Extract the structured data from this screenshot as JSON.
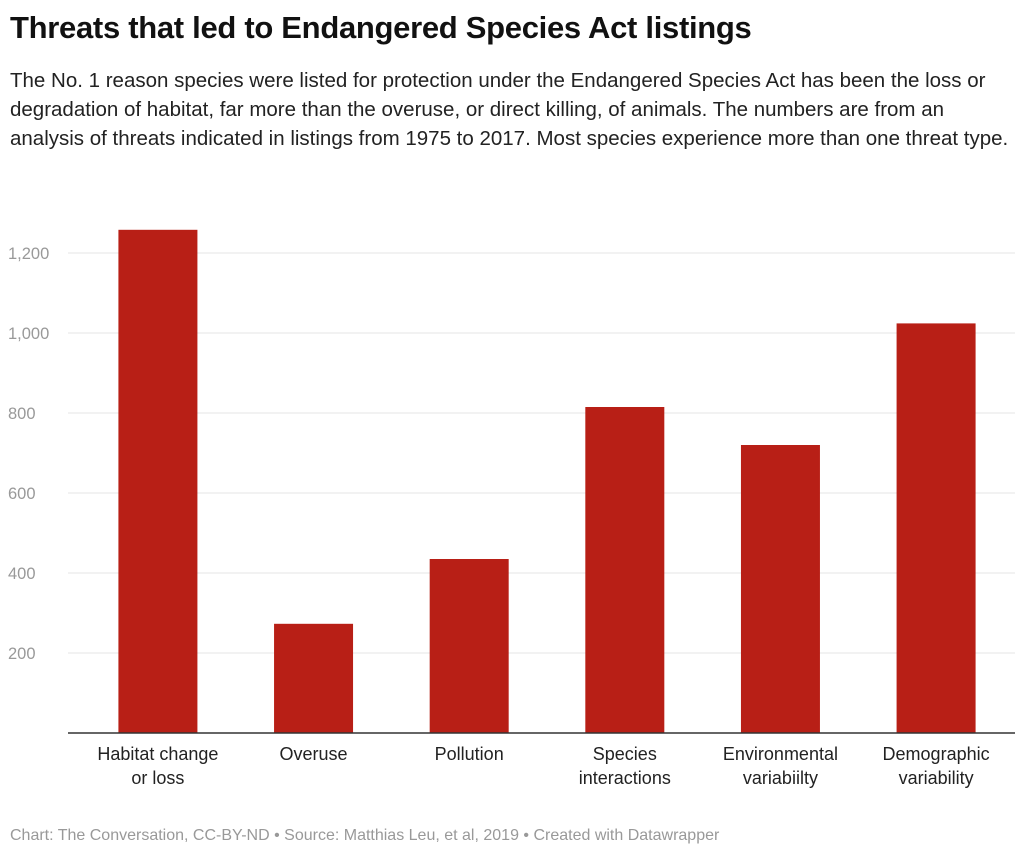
{
  "title": "Threats that led to Endangered Species Act listings",
  "description": "The No. 1 reason species were listed for protection under the Endangered Species Act has been the loss or degradation of habitat, far more than the overuse, or direct killing, of animals. The numbers are from an analysis of threats indicated in listings from 1975 to 2017. Most species experience more than one threat type.",
  "footer": "Chart: The Conversation, CC-BY-ND • Source: Matthias Leu, et al, 2019 • Created with Datawrapper",
  "chart_data": {
    "type": "bar",
    "title": "Threats that led to Endangered Species Act listings",
    "categories": [
      [
        "Habitat change",
        "or loss"
      ],
      [
        "Overuse"
      ],
      [
        "Pollution"
      ],
      [
        "Species",
        "interactions"
      ],
      [
        "Environmental",
        "variabiilty"
      ],
      [
        "Demographic",
        "variability"
      ]
    ],
    "values": [
      1258,
      273,
      435,
      815,
      720,
      1024
    ],
    "yticks": [
      200,
      400,
      600,
      800,
      1000,
      1200
    ],
    "ytick_labels": [
      "200",
      "400",
      "600",
      "800",
      "1,000",
      "1,200"
    ],
    "ylim": [
      0,
      1300
    ],
    "grid": true,
    "bar_color": "#b81f16",
    "xlabel": "",
    "ylabel": ""
  }
}
